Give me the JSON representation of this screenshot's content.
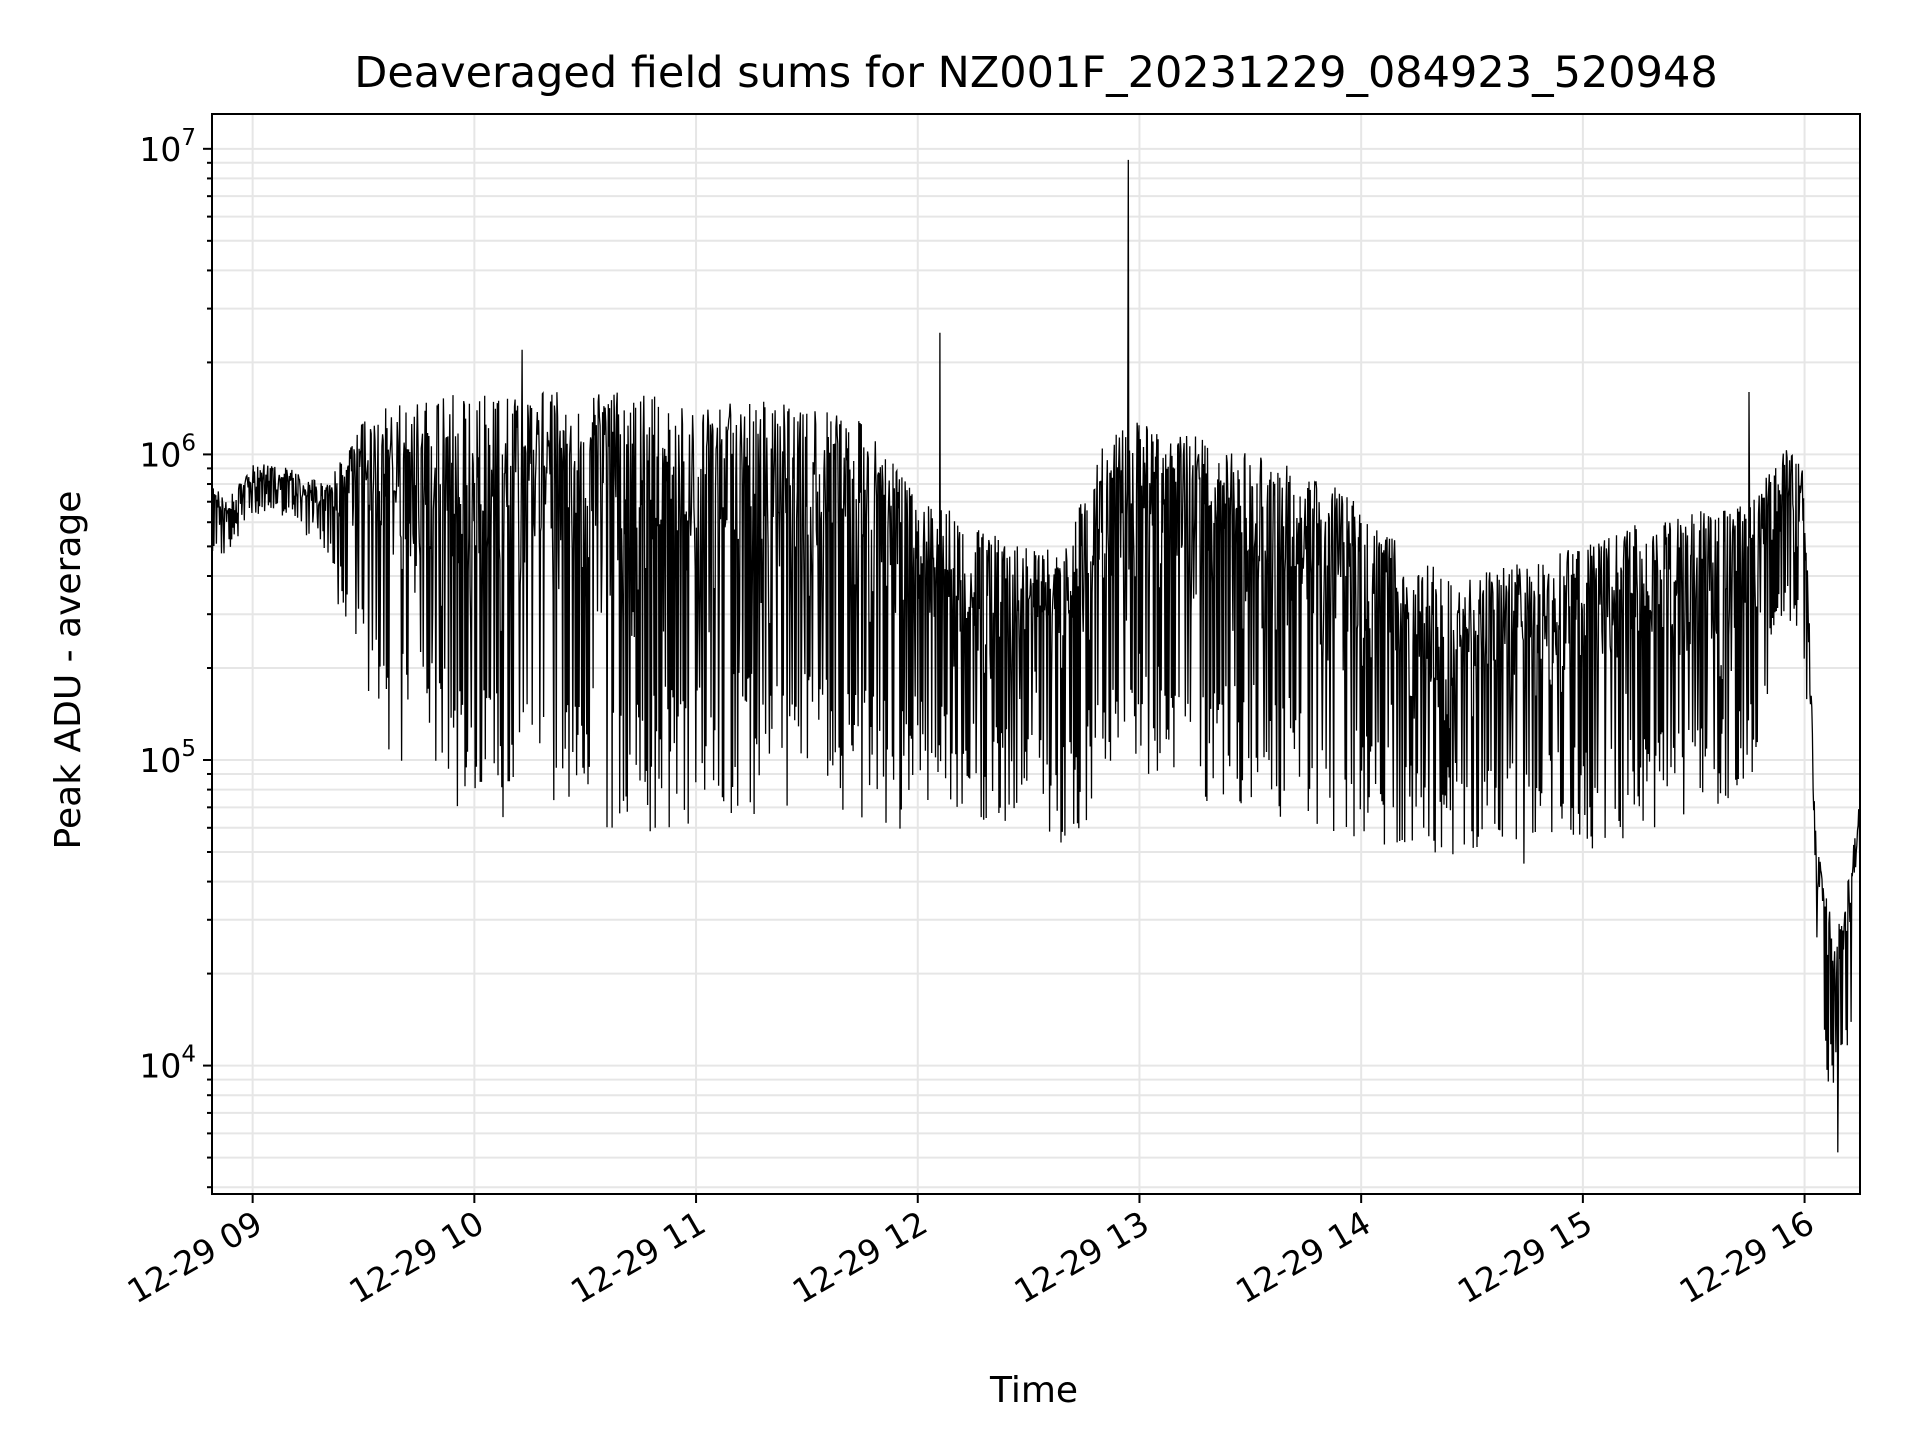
{
  "chart_data": {
    "type": "line",
    "title": "Deaveraged field sums for NZ001F_20231229_084923_520948",
    "xlabel": "Time",
    "ylabel": "Peak ADU - average",
    "xscale": "time",
    "yscale": "log",
    "xlim": [
      "2023-12-29 08:49",
      "2023-12-29 16:15"
    ],
    "ylim": [
      3800,
      13000000
    ],
    "grid": true,
    "x_ticks": [
      "12-29 09",
      "12-29 10",
      "12-29 11",
      "12-29 12",
      "12-29 13",
      "12-29 14",
      "12-29 15",
      "12-29 16"
    ],
    "y_ticks": [
      {
        "base": "10",
        "exp": "4",
        "value": 10000
      },
      {
        "base": "10",
        "exp": "5",
        "value": 100000
      },
      {
        "base": "10",
        "exp": "6",
        "value": 1000000
      },
      {
        "base": "10",
        "exp": "7",
        "value": 10000000
      }
    ],
    "series": [
      {
        "color": "#000000",
        "x": [
          "08:49",
          "08:53",
          "09:00",
          "09:10",
          "09:20",
          "09:30",
          "09:40",
          "09:50",
          "10:00",
          "10:15",
          "10:30",
          "10:45",
          "11:00",
          "11:15",
          "11:30",
          "11:45",
          "11:55",
          "12:00",
          "12:10",
          "12:20",
          "12:30",
          "12:40",
          "12:50",
          "13:00",
          "13:10",
          "13:20",
          "13:30",
          "13:45",
          "14:00",
          "14:15",
          "14:30",
          "14:45",
          "15:00",
          "15:15",
          "15:30",
          "15:45",
          "15:55",
          "16:00",
          "16:03",
          "16:05",
          "16:08",
          "16:11",
          "16:15"
        ],
        "envelope_high": [
          820000,
          700000,
          950000,
          900000,
          800000,
          1300000,
          1550000,
          1600000,
          1600000,
          1600000,
          1600000,
          1600000,
          1550000,
          1500000,
          1450000,
          1300000,
          900000,
          700000,
          650000,
          550000,
          500000,
          500000,
          1100000,
          1300000,
          1200000,
          1100000,
          1000000,
          900000,
          700000,
          450000,
          400000,
          450000,
          500000,
          600000,
          650000,
          700000,
          1050000,
          900000,
          60000,
          40000,
          30000,
          35000,
          80000
        ],
        "envelope_low": [
          400000,
          480000,
          600000,
          620000,
          450000,
          150000,
          90000,
          75000,
          55000,
          55000,
          55000,
          55000,
          60000,
          65000,
          65000,
          60000,
          55000,
          75000,
          65000,
          60000,
          60000,
          50000,
          65000,
          90000,
          80000,
          70000,
          70000,
          60000,
          50000,
          50000,
          45000,
          45000,
          50000,
          55000,
          55000,
          70000,
          300000,
          200000,
          20000,
          9000,
          6500,
          9000,
          25000
        ],
        "peaks": [
          {
            "x": "10:13",
            "y": 2200000
          },
          {
            "x": "12:06",
            "y": 2500000
          },
          {
            "x": "12:57",
            "y": 9200000
          },
          {
            "x": "15:45",
            "y": 1600000
          },
          {
            "x": "16:09",
            "y": 5200
          }
        ]
      }
    ]
  }
}
